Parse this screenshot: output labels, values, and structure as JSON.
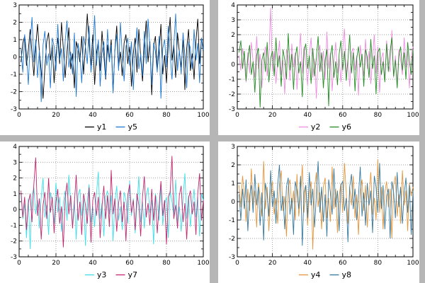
{
  "window": {
    "background": "#b6b6b6",
    "panel_background": "#ffffff"
  },
  "chart_data": [
    {
      "type": "line",
      "title": "",
      "xlabel": "",
      "ylabel": "",
      "x_range": [
        0,
        100
      ],
      "x_ticks": [
        0,
        20,
        40,
        60,
        80,
        100
      ],
      "ylim": [
        -3,
        3
      ],
      "y_ticks": [
        3,
        2,
        1,
        0,
        -1,
        -2,
        -3
      ],
      "grid": true,
      "legend_position": "bottom",
      "series": [
        {
          "name": "y1",
          "color": "#000000",
          "values": [
            -0.3,
            0.8,
            1.2,
            -0.5,
            0.4,
            1.6,
            0.2,
            -1.1,
            0.6,
            1.9,
            0.3,
            -0.8,
            -2.4,
            -0.6,
            0.9,
            1.4,
            -0.2,
            0.7,
            -1.5,
            0.1,
            1.1,
            -0.4,
            2.0,
            0.5,
            -1.2,
            0.3,
            1.7,
            -0.7,
            0.2,
            -1.8,
            0.9,
            0.4,
            -0.3,
            1.2,
            -1.0,
            0.6,
            2.5,
            0.8,
            -0.5,
            1.3,
            -1.6,
            0.2,
            0.9,
            -0.8,
            1.5,
            0.1,
            -1.3,
            0.7,
            -0.2,
            1.0,
            -2.0,
            0.4,
            1.8,
            -0.6,
            0.3,
            -1.1,
            0.8,
            1.3,
            -0.4,
            0.6,
            -1.7,
            0.2,
            1.1,
            -0.9,
            1.6,
            0.0,
            -1.4,
            0.5,
            2.1,
            -0.3,
            0.9,
            -2.2,
            0.6,
            1.2,
            -0.7,
            0.3,
            1.9,
            -1.0,
            0.1,
            -1.5,
            0.8,
            2.3,
            -0.2,
            0.7,
            -1.2,
            1.4,
            0.3,
            -0.6,
            1.0,
            -1.9,
            0.5,
            1.6,
            -0.8,
            0.2,
            -1.3,
            0.9,
            2.2,
            -0.4,
            1.1,
            0.3
          ]
        },
        {
          "name": "y5",
          "color": "#1e78d2",
          "values": [
            0.5,
            -0.9,
            1.3,
            0.2,
            -1.6,
            0.8,
            2.3,
            -0.3,
            1.0,
            -1.2,
            0.4,
            -2.6,
            0.7,
            1.5,
            -0.5,
            0.2,
            -1.8,
            1.1,
            0.6,
            -0.8,
            1.9,
            -0.2,
            0.5,
            -1.4,
            0.9,
            2.1,
            -0.6,
            0.3,
            -1.0,
            1.4,
            -2.3,
            0.8,
            0.1,
            -1.5,
            1.2,
            0.6,
            -0.4,
            1.8,
            -0.9,
            0.3,
            2.4,
            -0.5,
            1.0,
            -1.7,
            0.2,
            0.9,
            -1.2,
            1.6,
            -0.3,
            0.7,
            -2.1,
            0.4,
            1.3,
            -0.8,
            2.0,
            0.1,
            -1.4,
            0.6,
            1.1,
            -0.5,
            0.9,
            -1.9,
            0.3,
            1.7,
            -0.7,
            0.2,
            -1.1,
            1.5,
            -0.4,
            2.2,
            0.6,
            -1.6,
            0.8,
            0.3,
            -0.9,
            1.2,
            -2.4,
            0.5,
            1.0,
            -0.6,
            1.8,
            0.2,
            -1.3,
            0.7,
            2.5,
            -0.8,
            0.4,
            -1.0,
            1.4,
            0.1,
            -1.8,
            0.9,
            0.5,
            -0.7,
            1.6,
            -0.2,
            0.8,
            -1.5,
            1.1,
            0.4
          ]
        }
      ]
    },
    {
      "type": "line",
      "title": "",
      "xlabel": "",
      "ylabel": "",
      "x_range": [
        0,
        100
      ],
      "x_ticks": [
        0,
        20,
        40,
        60,
        80,
        100
      ],
      "ylim": [
        -3,
        4
      ],
      "y_ticks": [
        4,
        3,
        2,
        1,
        0,
        -1,
        -2,
        -3
      ],
      "grid": true,
      "legend_position": "bottom",
      "series": [
        {
          "name": "y2",
          "color": "#ee8ce0",
          "values": [
            0.6,
            -0.4,
            1.1,
            0.3,
            -1.2,
            0.8,
            -0.6,
            1.5,
            0.2,
            -0.9,
            1.9,
            -0.3,
            0.7,
            -1.6,
            0.4,
            1.2,
            -0.8,
            0.5,
            3.8,
            -0.5,
            0.9,
            -1.3,
            0.2,
            1.6,
            -0.7,
            0.3,
            -2.0,
            1.0,
            0.5,
            -1.1,
            1.4,
            -0.2,
            0.8,
            -1.7,
            0.3,
            2.1,
            -0.6,
            1.2,
            0.1,
            -1.4,
            0.7,
            1.8,
            -0.9,
            0.4,
            -2.3,
            0.6,
            1.3,
            -0.5,
            0.9,
            -1.0,
            2.2,
            -0.3,
            0.8,
            -1.8,
            0.2,
            1.5,
            -0.6,
            0.4,
            -1.2,
            1.0,
            2.4,
            -0.7,
            0.3,
            -1.5,
            0.8,
            1.1,
            -0.4,
            0.6,
            -2.1,
            1.3,
            0.2,
            -0.8,
            1.7,
            -0.3,
            0.9,
            -1.3,
            0.5,
            2.0,
            -0.6,
            1.2,
            -1.9,
            0.4,
            0.8,
            -1.1,
            1.6,
            0.1,
            -0.5,
            2.3,
            -0.9,
            0.6,
            -1.4,
            1.0,
            0.3,
            -0.7,
            1.8,
            -0.2,
            0.9,
            -1.6,
            0.5,
            1.2
          ]
        },
        {
          "name": "y6",
          "color": "#228b22",
          "values": [
            0.8,
            1.6,
            -0.3,
            0.9,
            -1.1,
            0.4,
            1.3,
            -0.7,
            0.2,
            -1.9,
            0.6,
            1.1,
            -2.9,
            0.3,
            0.8,
            -0.5,
            1.5,
            -1.2,
            0.4,
            0.9,
            -0.8,
            1.8,
            -0.2,
            0.6,
            -1.5,
            1.0,
            0.3,
            -1.0,
            2.1,
            -0.4,
            0.7,
            -1.7,
            0.5,
            1.2,
            -0.6,
            0.2,
            -2.2,
            0.9,
            1.4,
            -0.3,
            0.6,
            -1.3,
            1.1,
            -0.8,
            0.4,
            1.9,
            -0.5,
            0.8,
            -1.6,
            0.3,
            1.0,
            -2.8,
            0.5,
            1.3,
            -0.9,
            0.2,
            -1.4,
            0.7,
            1.6,
            -0.4,
            0.9,
            -1.1,
            0.3,
            2.0,
            -0.6,
            0.8,
            -1.8,
            0.4,
            1.2,
            -0.2,
            0.7,
            -1.5,
            1.0,
            0.5,
            -0.9,
            1.7,
            -0.3,
            0.6,
            -2.0,
            0.8,
            1.1,
            -0.7,
            0.2,
            -1.2,
            1.4,
            -0.5,
            0.9,
            1.8,
            -0.8,
            0.3,
            -1.6,
            0.6,
            1.2,
            -0.4,
            0.8,
            -1.0,
            1.5,
            0.2,
            -0.7,
            1.0
          ]
        }
      ]
    },
    {
      "type": "line",
      "title": "",
      "xlabel": "",
      "ylabel": "",
      "x_range": [
        0,
        100
      ],
      "x_ticks": [
        0,
        20,
        40,
        60,
        80,
        100
      ],
      "ylim": [
        -3,
        4
      ],
      "y_ticks": [
        4,
        3,
        2,
        1,
        0,
        -1,
        -2,
        -3
      ],
      "grid": true,
      "legend_position": "bottom",
      "series": [
        {
          "name": "y3",
          "color": "#3fdde6",
          "values": [
            1.0,
            -0.6,
            0.4,
            -1.8,
            0.7,
            -2.5,
            0.9,
            1.4,
            -0.3,
            0.6,
            -1.2,
            0.8,
            2.0,
            -0.5,
            0.3,
            -1.6,
            1.1,
            0.5,
            -0.9,
            1.7,
            -0.2,
            0.8,
            -1.4,
            0.4,
            1.2,
            -0.7,
            2.2,
            0.3,
            -1.0,
            0.6,
            -1.9,
            0.9,
            1.3,
            -0.4,
            0.7,
            -2.3,
            0.5,
            1.6,
            -0.8,
            0.2,
            -1.1,
            1.0,
            2.4,
            -0.6,
            0.4,
            -1.7,
            0.8,
            1.2,
            -0.3,
            0.9,
            -2.0,
            0.5,
            1.5,
            -0.7,
            0.2,
            -1.3,
            1.1,
            0.6,
            -0.9,
            1.8,
            -0.4,
            0.7,
            -1.5,
            0.3,
            2.1,
            -0.8,
            0.5,
            -1.2,
            0.9,
            1.4,
            -0.2,
            0.6,
            -2.2,
            1.0,
            0.4,
            -0.7,
            1.6,
            -1.0,
            0.3,
            0.8,
            -1.8,
            1.2,
            0.5,
            -0.4,
            1.9,
            -0.9,
            0.2,
            -1.4,
            0.7,
            2.3,
            -0.6,
            0.9,
            -1.1,
            0.4,
            1.3,
            -0.5,
            0.8,
            -1.7,
            1.0,
            0.6
          ]
        },
        {
          "name": "y7",
          "color": "#c2266e",
          "values": [
            1.2,
            -0.5,
            0.8,
            -1.3,
            0.4,
            1.0,
            -0.8,
            1.6,
            3.3,
            -0.4,
            0.7,
            -1.9,
            0.3,
            1.1,
            -0.6,
            2.0,
            -0.2,
            0.8,
            -1.5,
            0.5,
            1.3,
            -0.9,
            0.2,
            -2.4,
            0.7,
            1.7,
            -0.3,
            0.9,
            -1.2,
            0.4,
            2.2,
            -0.7,
            0.5,
            -1.6,
            1.0,
            0.3,
            -0.9,
            1.4,
            -2.1,
            0.6,
            1.1,
            -0.4,
            0.8,
            -1.8,
            0.2,
            1.5,
            -0.6,
            0.9,
            -1.1,
            2.5,
            -0.3,
            0.7,
            -1.4,
            0.4,
            1.2,
            -0.8,
            0.5,
            -2.0,
            0.9,
            1.6,
            -0.2,
            0.6,
            -1.3,
            1.0,
            0.3,
            -1.7,
            0.8,
            2.1,
            -0.5,
            0.4,
            -1.0,
            1.3,
            -0.7,
            0.9,
            -1.5,
            0.2,
            1.8,
            -0.4,
            0.6,
            -2.2,
            0.8,
            1.1,
            3.4,
            -0.6,
            0.3,
            -1.2,
            0.9,
            1.5,
            -0.8,
            0.4,
            -1.9,
            0.7,
            1.2,
            -0.3,
            0.5,
            -1.6,
            1.0,
            2.3,
            -0.7,
            0.6
          ]
        }
      ]
    },
    {
      "type": "line",
      "title": "",
      "xlabel": "",
      "ylabel": "",
      "x_range": [
        0,
        100
      ],
      "x_ticks": [
        0,
        20,
        40,
        60,
        80,
        100
      ],
      "ylim": [
        -3,
        3
      ],
      "y_ticks": [
        3,
        2,
        1,
        0,
        -1,
        -2,
        -3
      ],
      "grid": true,
      "legend_position": "bottom",
      "series": [
        {
          "name": "y4",
          "color": "#e6953a",
          "values": [
            0.9,
            -0.3,
            1.4,
            0.5,
            -1.1,
            0.7,
            -0.5,
            1.8,
            -0.2,
            0.6,
            -1.4,
            1.0,
            0.3,
            -0.8,
            2.2,
            -0.4,
            0.8,
            -1.6,
            0.5,
            1.1,
            -0.7,
            0.2,
            -1.2,
            0.9,
            1.7,
            -0.5,
            0.3,
            -1.9,
            0.8,
            1.2,
            -0.4,
            0.6,
            -1.0,
            1.5,
            -0.8,
            0.2,
            2.0,
            -0.6,
            0.9,
            -1.3,
            0.4,
            1.1,
            -2.6,
            0.7,
            1.6,
            -0.3,
            0.5,
            -1.5,
            0.8,
            1.3,
            -0.9,
            0.2,
            -1.1,
            1.9,
            -0.4,
            0.7,
            -1.7,
            0.3,
            1.0,
            -0.6,
            2.1,
            0.5,
            -1.2,
            0.8,
            -0.2,
            1.4,
            -0.9,
            0.4,
            -1.8,
            0.6,
            1.2,
            -0.5,
            0.9,
            -1.4,
            0.3,
            1.6,
            -0.7,
            0.2,
            -1.0,
            2.3,
            -0.6,
            0.8,
            -1.5,
            0.5,
            1.1,
            -0.3,
            0.7,
            -2.0,
            0.9,
            1.4,
            -0.8,
            0.4,
            -1.2,
            1.7,
            -0.2,
            0.6,
            -1.6,
            1.0,
            0.3,
            0.8
          ]
        },
        {
          "name": "y8",
          "color": "#35789e",
          "values": [
            0.4,
            -1.0,
            0.7,
            -0.4,
            1.2,
            -1.6,
            0.3,
            0.9,
            -0.6,
            1.5,
            -0.2,
            0.8,
            -1.3,
            0.5,
            -2.1,
            1.0,
            0.4,
            -0.8,
            1.7,
            -0.3,
            0.6,
            -1.2,
            0.9,
            2.0,
            -0.5,
            0.3,
            -1.5,
            0.8,
            1.3,
            -0.7,
            0.2,
            -1.8,
            1.1,
            0.6,
            -0.4,
            1.4,
            -2.4,
            0.5,
            0.9,
            -0.9,
            1.6,
            -0.2,
            0.7,
            -1.4,
            0.3,
            2.2,
            -0.6,
            0.8,
            -1.1,
            0.4,
            -1.9,
            1.2,
            0.5,
            -0.7,
            1.8,
            -0.3,
            0.6,
            -1.6,
            0.9,
            1.1,
            -0.5,
            0.2,
            -2.2,
            0.8,
            1.5,
            -0.4,
            0.7,
            -1.0,
            0.3,
            1.9,
            -0.8,
            0.5,
            -1.3,
            1.0,
            -0.2,
            0.6,
            -1.7,
            1.4,
            0.8,
            -0.6,
            2.1,
            -0.4,
            0.9,
            -1.5,
            0.3,
            0.7,
            -2.0,
            1.1,
            0.5,
            -0.9,
            1.6,
            -0.3,
            0.8,
            -1.2,
            0.4,
            1.3,
            -0.6,
            0.9,
            -1.8,
            0.6
          ]
        }
      ]
    }
  ]
}
